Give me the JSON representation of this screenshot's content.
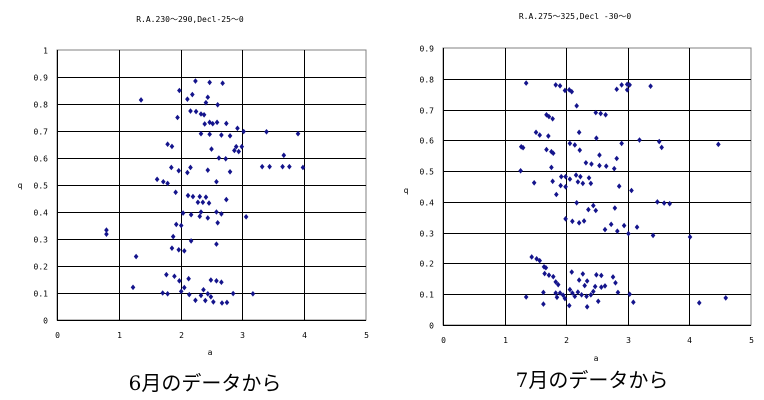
{
  "marker_color": "#14148c",
  "chart_data": [
    {
      "type": "scatter",
      "title": "R.A.230〜290,Decl-25〜0",
      "xlabel": "a",
      "ylabel": "q",
      "caption": "6月のデータから",
      "xlim": [
        0,
        5
      ],
      "ylim": [
        0,
        1
      ],
      "xticks": [
        "0",
        "1",
        "2",
        "3",
        "4",
        "5"
      ],
      "yticks": [
        "0",
        "0.1",
        "0.2",
        "0.3",
        "0.4",
        "0.5",
        "0.6",
        "0.7",
        "0.8",
        "0.9",
        "1"
      ],
      "grid": true,
      "points": [
        [
          1.36,
          0.815
        ],
        [
          1.98,
          0.85
        ],
        [
          2.24,
          0.885
        ],
        [
          2.47,
          0.88
        ],
        [
          2.68,
          0.877
        ],
        [
          2.19,
          0.835
        ],
        [
          2.11,
          0.818
        ],
        [
          2.44,
          0.825
        ],
        [
          2.41,
          0.805
        ],
        [
          2.6,
          0.797
        ],
        [
          1.95,
          0.75
        ],
        [
          2.16,
          0.774
        ],
        [
          2.25,
          0.772
        ],
        [
          2.33,
          0.763
        ],
        [
          2.38,
          0.76
        ],
        [
          2.39,
          0.726
        ],
        [
          2.47,
          0.732
        ],
        [
          2.52,
          0.727
        ],
        [
          2.59,
          0.732
        ],
        [
          2.74,
          0.728
        ],
        [
          2.92,
          0.71
        ],
        [
          3.02,
          0.698
        ],
        [
          2.33,
          0.69
        ],
        [
          2.47,
          0.688
        ],
        [
          2.66,
          0.685
        ],
        [
          2.8,
          0.682
        ],
        [
          3.39,
          0.697
        ],
        [
          3.9,
          0.69
        ],
        [
          1.79,
          0.651
        ],
        [
          1.86,
          0.643
        ],
        [
          2.5,
          0.633
        ],
        [
          2.9,
          0.642
        ],
        [
          2.99,
          0.642
        ],
        [
          2.87,
          0.628
        ],
        [
          2.94,
          0.624
        ],
        [
          2.62,
          0.6
        ],
        [
          2.73,
          0.597
        ],
        [
          3.67,
          0.61
        ],
        [
          3.32,
          0.568
        ],
        [
          3.44,
          0.568
        ],
        [
          3.65,
          0.568
        ],
        [
          3.76,
          0.568
        ],
        [
          3.98,
          0.565
        ],
        [
          1.85,
          0.565
        ],
        [
          1.97,
          0.553
        ],
        [
          2.16,
          0.565
        ],
        [
          2.11,
          0.546
        ],
        [
          2.44,
          0.555
        ],
        [
          2.8,
          0.549
        ],
        [
          1.62,
          0.521
        ],
        [
          1.72,
          0.512
        ],
        [
          1.79,
          0.506
        ],
        [
          2.58,
          0.512
        ],
        [
          1.92,
          0.473
        ],
        [
          2.12,
          0.461
        ],
        [
          2.2,
          0.457
        ],
        [
          2.31,
          0.457
        ],
        [
          2.41,
          0.455
        ],
        [
          2.28,
          0.436
        ],
        [
          2.36,
          0.436
        ],
        [
          2.46,
          0.433
        ],
        [
          2.74,
          0.446
        ],
        [
          2.04,
          0.396
        ],
        [
          2.17,
          0.39
        ],
        [
          2.33,
          0.4
        ],
        [
          2.31,
          0.384
        ],
        [
          2.44,
          0.378
        ],
        [
          2.58,
          0.4
        ],
        [
          2.66,
          0.393
        ],
        [
          2.6,
          0.36
        ],
        [
          3.06,
          0.382
        ],
        [
          0.8,
          0.333
        ],
        [
          0.8,
          0.318
        ],
        [
          1.93,
          0.354
        ],
        [
          2.01,
          0.35
        ],
        [
          1.88,
          0.309
        ],
        [
          2.17,
          0.293
        ],
        [
          2.58,
          0.281
        ],
        [
          1.86,
          0.266
        ],
        [
          1.97,
          0.26
        ],
        [
          2.06,
          0.256
        ],
        [
          1.28,
          0.235
        ],
        [
          1.77,
          0.168
        ],
        [
          1.9,
          0.162
        ],
        [
          2.13,
          0.153
        ],
        [
          1.98,
          0.145
        ],
        [
          2.49,
          0.148
        ],
        [
          2.58,
          0.145
        ],
        [
          2.66,
          0.14
        ],
        [
          1.23,
          0.121
        ],
        [
          2.06,
          0.12
        ],
        [
          1.71,
          0.1
        ],
        [
          1.79,
          0.097
        ],
        [
          2.01,
          0.106
        ],
        [
          2.14,
          0.094
        ],
        [
          2.37,
          0.112
        ],
        [
          2.33,
          0.091
        ],
        [
          2.44,
          0.097
        ],
        [
          2.49,
          0.086
        ],
        [
          2.85,
          0.098
        ],
        [
          3.17,
          0.097
        ],
        [
          2.24,
          0.073
        ],
        [
          2.4,
          0.072
        ],
        [
          2.53,
          0.067
        ],
        [
          2.67,
          0.063
        ],
        [
          2.75,
          0.065
        ]
      ]
    },
    {
      "type": "scatter",
      "title": "R.A.275〜325,Decl -30〜0",
      "xlabel": "a",
      "ylabel": "q",
      "caption": "7月のデータから",
      "xlim": [
        0,
        5
      ],
      "ylim": [
        0,
        0.9
      ],
      "xticks": [
        "0",
        "1",
        "2",
        "3",
        "4",
        "5"
      ],
      "yticks": [
        "0",
        "0.1",
        "0.2",
        "0.3",
        "0.4",
        "0.5",
        "0.6",
        "0.7",
        "0.8",
        "0.9"
      ],
      "grid": true,
      "points": [
        [
          1.35,
          0.786
        ],
        [
          1.83,
          0.78
        ],
        [
          1.9,
          0.777
        ],
        [
          1.98,
          0.762
        ],
        [
          2.05,
          0.764
        ],
        [
          2.09,
          0.758
        ],
        [
          2.17,
          0.712
        ],
        [
          1.68,
          0.683
        ],
        [
          1.72,
          0.677
        ],
        [
          1.78,
          0.67
        ],
        [
          2.48,
          0.69
        ],
        [
          2.56,
          0.687
        ],
        [
          2.64,
          0.683
        ],
        [
          1.51,
          0.626
        ],
        [
          1.57,
          0.617
        ],
        [
          1.71,
          0.614
        ],
        [
          2.21,
          0.626
        ],
        [
          2.49,
          0.607
        ],
        [
          2.9,
          0.59
        ],
        [
          3.19,
          0.601
        ],
        [
          3.51,
          0.596
        ],
        [
          3.55,
          0.577
        ],
        [
          4.47,
          0.587
        ],
        [
          2.82,
          0.766
        ],
        [
          2.9,
          0.78
        ],
        [
          2.99,
          0.782
        ],
        [
          3.03,
          0.78
        ],
        [
          2.99,
          0.764
        ],
        [
          3.37,
          0.776
        ],
        [
          1.27,
          0.579
        ],
        [
          1.3,
          0.576
        ],
        [
          1.68,
          0.57
        ],
        [
          1.76,
          0.563
        ],
        [
          1.79,
          0.558
        ],
        [
          2.06,
          0.59
        ],
        [
          2.14,
          0.585
        ],
        [
          2.22,
          0.568
        ],
        [
          1.76,
          0.512
        ],
        [
          1.26,
          0.501
        ],
        [
          2.32,
          0.527
        ],
        [
          2.41,
          0.523
        ],
        [
          2.54,
          0.518
        ],
        [
          2.54,
          0.552
        ],
        [
          2.65,
          0.516
        ],
        [
          2.78,
          0.508
        ],
        [
          2.82,
          0.541
        ],
        [
          1.48,
          0.462
        ],
        [
          1.78,
          0.467
        ],
        [
          1.92,
          0.482
        ],
        [
          1.99,
          0.482
        ],
        [
          1.99,
          0.449
        ],
        [
          1.91,
          0.453
        ],
        [
          2.06,
          0.474
        ],
        [
          2.16,
          0.487
        ],
        [
          2.23,
          0.482
        ],
        [
          2.19,
          0.465
        ],
        [
          2.27,
          0.46
        ],
        [
          2.37,
          0.478
        ],
        [
          2.4,
          0.46
        ],
        [
          2.86,
          0.451
        ],
        [
          3.06,
          0.437
        ],
        [
          1.84,
          0.424
        ],
        [
          2.17,
          0.397
        ],
        [
          2.36,
          0.375
        ],
        [
          2.44,
          0.388
        ],
        [
          2.48,
          0.372
        ],
        [
          2.79,
          0.38
        ],
        [
          1.99,
          0.345
        ],
        [
          2.1,
          0.337
        ],
        [
          2.21,
          0.332
        ],
        [
          2.29,
          0.338
        ],
        [
          2.63,
          0.31
        ],
        [
          2.73,
          0.327
        ],
        [
          2.83,
          0.305
        ],
        [
          2.94,
          0.323
        ],
        [
          3.01,
          0.297
        ],
        [
          3.15,
          0.318
        ],
        [
          3.41,
          0.291
        ],
        [
          3.48,
          0.4
        ],
        [
          3.59,
          0.396
        ],
        [
          3.68,
          0.394
        ],
        [
          4.01,
          0.286
        ],
        [
          1.44,
          0.221
        ],
        [
          1.52,
          0.215
        ],
        [
          1.57,
          0.209
        ],
        [
          1.64,
          0.189
        ],
        [
          1.67,
          0.186
        ],
        [
          1.65,
          0.167
        ],
        [
          1.72,
          0.162
        ],
        [
          1.79,
          0.157
        ],
        [
          1.83,
          0.14
        ],
        [
          1.87,
          0.131
        ],
        [
          2.09,
          0.172
        ],
        [
          2.27,
          0.166
        ],
        [
          2.21,
          0.146
        ],
        [
          2.34,
          0.143
        ],
        [
          2.49,
          0.163
        ],
        [
          2.57,
          0.161
        ],
        [
          2.76,
          0.156
        ],
        [
          2.8,
          0.137
        ],
        [
          1.35,
          0.091
        ],
        [
          1.63,
          0.106
        ],
        [
          1.63,
          0.068
        ],
        [
          1.83,
          0.104
        ],
        [
          1.9,
          0.104
        ],
        [
          1.95,
          0.097
        ],
        [
          1.98,
          0.086
        ],
        [
          2.06,
          0.115
        ],
        [
          2.1,
          0.104
        ],
        [
          2.14,
          0.093
        ],
        [
          2.19,
          0.107
        ],
        [
          2.25,
          0.098
        ],
        [
          2.33,
          0.093
        ],
        [
          2.4,
          0.098
        ],
        [
          2.05,
          0.063
        ],
        [
          2.34,
          0.059
        ],
        [
          2.44,
          0.109
        ],
        [
          2.47,
          0.125
        ],
        [
          2.52,
          0.077
        ],
        [
          2.57,
          0.123
        ],
        [
          2.63,
          0.127
        ],
        [
          2.3,
          0.128
        ],
        [
          2.84,
          0.106
        ],
        [
          3.03,
          0.1
        ],
        [
          3.09,
          0.074
        ],
        [
          4.16,
          0.072
        ],
        [
          4.59,
          0.088
        ],
        [
          1.85,
          0.09
        ]
      ]
    }
  ]
}
